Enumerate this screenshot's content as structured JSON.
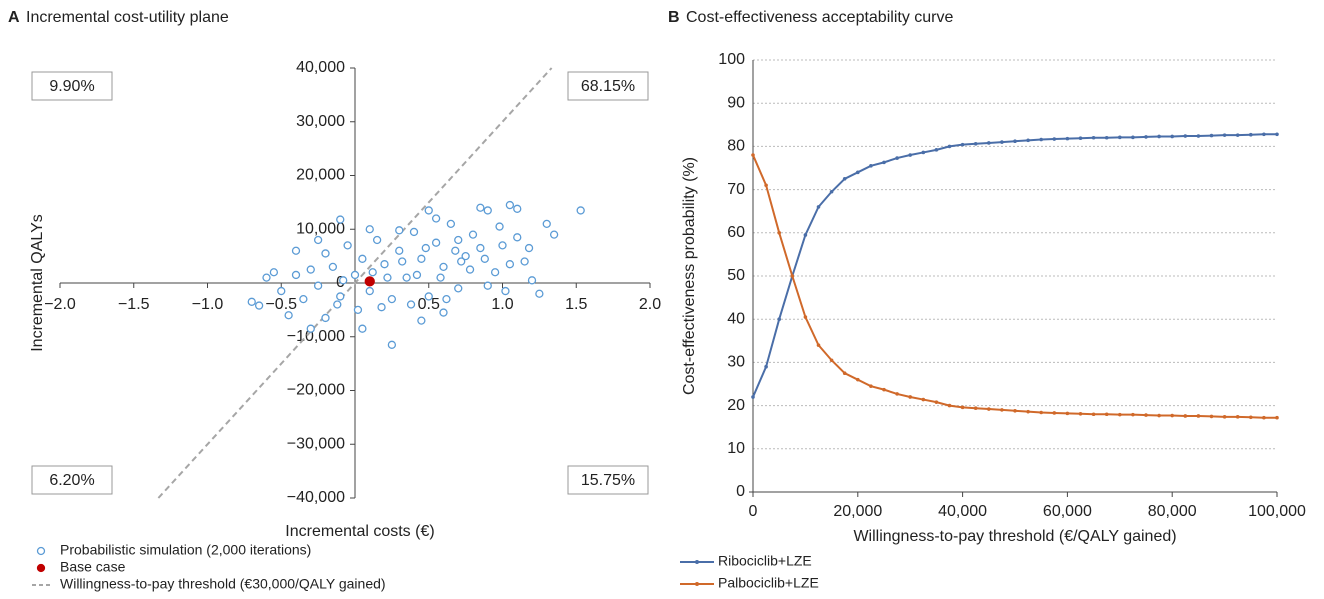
{
  "chart_data": [
    {
      "type": "scatter",
      "panel": "A",
      "title": "Incremental cost-utility plane",
      "xlabel": "Incremental costs (€)",
      "ylabel": "Incremental QALYs",
      "xlim": [
        -2,
        2
      ],
      "ylim": [
        -40000,
        40000
      ],
      "xticks": [
        {
          "value": -2,
          "label": "−2.0"
        },
        {
          "value": -1.5,
          "label": "−1.5"
        },
        {
          "value": -1,
          "label": "−1.0"
        },
        {
          "value": -0.5,
          "label": "−0.5"
        },
        {
          "value": 0.5,
          "label": "0.5"
        },
        {
          "value": 1,
          "label": "1.0"
        },
        {
          "value": 1.5,
          "label": "1.5"
        },
        {
          "value": 2,
          "label": "2.0"
        }
      ],
      "yticks": [
        {
          "value": 40000,
          "label": "40,000"
        },
        {
          "value": 30000,
          "label": "30,000"
        },
        {
          "value": 20000,
          "label": "20,000"
        },
        {
          "value": 10000,
          "label": "10,000"
        },
        0,
        {
          "value": -10000,
          "label": "−10,000"
        },
        {
          "value": -20000,
          "label": "−20,000"
        },
        {
          "value": -30000,
          "label": "−30,000"
        },
        {
          "value": -40000,
          "label": "−40,000"
        }
      ],
      "series": [
        {
          "name": "Probabilistic simulation (2,000 iterations)",
          "color": "#5b9bd5",
          "marker": "open",
          "x": [
            1.53,
            1.3,
            1.35,
            1.05,
            1.1,
            0.85,
            0.9,
            0.5,
            -0.1,
            0.25,
            -0.7,
            -0.65,
            -0.6,
            -0.45,
            -0.3,
            -0.2,
            0.05,
            0.45,
            0.6,
            1.2,
            1.25,
            1.15,
            1.0,
            0.95,
            0.8,
            0.75,
            0.7,
            0.65,
            0.6,
            0.55,
            0.5,
            0.45,
            0.4,
            0.35,
            0.3,
            0.25,
            0.2,
            0.15,
            0.1,
            0.05,
            0.0,
            -0.05,
            -0.1,
            -0.15,
            -0.2,
            -0.25,
            -0.3,
            -0.35,
            -0.4,
            -0.5,
            -0.55,
            -0.4,
            -0.25,
            0.1,
            0.3,
            0.55,
            0.7,
            0.85,
            0.9,
            1.05,
            1.1,
            0.98,
            0.78,
            0.62,
            0.42,
            0.18,
            0.02,
            -0.12,
            0.38,
            0.72,
            0.48,
            0.22,
            0.88,
            1.18,
            1.02,
            0.32,
            0.12,
            -0.08,
            0.58,
            0.68
          ],
          "y": [
            13500,
            11000,
            9000,
            14500,
            13800,
            14000,
            13500,
            13500,
            11800,
            -11500,
            -3500,
            -4200,
            1000,
            -6000,
            -8500,
            -6500,
            -8500,
            -7000,
            -5500,
            500,
            -2000,
            4000,
            7000,
            2000,
            9000,
            5000,
            -1000,
            11000,
            3000,
            7500,
            -2500,
            4500,
            9500,
            1000,
            6000,
            -3000,
            3500,
            8000,
            -1500,
            4500,
            1500,
            7000,
            -2500,
            3000,
            5500,
            -500,
            2500,
            -3000,
            1500,
            -1500,
            2000,
            6000,
            8000,
            10000,
            9800,
            12000,
            8000,
            6500,
            -500,
            3500,
            8500,
            10500,
            2500,
            -3000,
            1500,
            -4500,
            -5000,
            -4000,
            -4000,
            4000,
            6500,
            1000,
            4500,
            6500,
            -1500,
            4000,
            2000,
            500,
            1000,
            6000
          ]
        },
        {
          "name": "Base case",
          "color": "#c00000",
          "marker": "filled",
          "x": [
            0.1
          ],
          "y": [
            300
          ]
        },
        {
          "name": "Willingness-to-pay threshold (€30,000/QALY gained)",
          "color": "#a6a6a6",
          "marker": "dashed-line",
          "x": [
            -1.333,
            1.333
          ],
          "y": [
            -40000,
            40000
          ]
        }
      ],
      "annotations": [
        {
          "text": "9.90%",
          "quadrant": "top-left"
        },
        {
          "text": "68.15%",
          "quadrant": "top-right"
        },
        {
          "text": "6.20%",
          "quadrant": "bottom-left"
        },
        {
          "text": "15.75%",
          "quadrant": "bottom-right"
        }
      ]
    },
    {
      "type": "line",
      "panel": "B",
      "title": "Cost-effectiveness acceptability curve",
      "xlabel": "Willingness-to-pay threshold (€/QALY gained)",
      "ylabel": "Cost-effectiveness probability (%)",
      "xlim": [
        0,
        100000
      ],
      "ylim": [
        0,
        100
      ],
      "grid": true,
      "xticks": [
        0,
        {
          "value": 20000,
          "label": "20,000"
        },
        {
          "value": 40000,
          "label": "40,000"
        },
        {
          "value": 60000,
          "label": "60,000"
        },
        {
          "value": 80000,
          "label": "80,000"
        },
        {
          "value": 100000,
          "label": "100,000"
        }
      ],
      "yticks": [
        0,
        10,
        20,
        30,
        40,
        50,
        60,
        70,
        80,
        90,
        100
      ],
      "x": [
        0,
        2500,
        5000,
        7500,
        10000,
        12500,
        15000,
        17500,
        20000,
        22500,
        25000,
        27500,
        30000,
        32500,
        35000,
        37500,
        40000,
        42500,
        45000,
        47500,
        50000,
        52500,
        55000,
        57500,
        60000,
        62500,
        65000,
        67500,
        70000,
        72500,
        75000,
        77500,
        80000,
        82500,
        85000,
        87500,
        90000,
        92500,
        95000,
        97500,
        100000
      ],
      "series": [
        {
          "name": "Ribociclib+LZE",
          "color": "#4a6ea8",
          "values": [
            22,
            29,
            40,
            50,
            59.5,
            66,
            69.5,
            72.5,
            74,
            75.5,
            76.3,
            77.3,
            78,
            78.6,
            79.2,
            80,
            80.4,
            80.6,
            80.8,
            81,
            81.2,
            81.4,
            81.6,
            81.7,
            81.8,
            81.9,
            82,
            82,
            82.1,
            82.1,
            82.2,
            82.3,
            82.3,
            82.4,
            82.4,
            82.5,
            82.6,
            82.6,
            82.7,
            82.8,
            82.8
          ]
        },
        {
          "name": "Palbociclib+LZE",
          "color": "#d0692a",
          "values": [
            78,
            71,
            60,
            50,
            40.5,
            34,
            30.5,
            27.5,
            26,
            24.5,
            23.7,
            22.7,
            22,
            21.4,
            20.8,
            20,
            19.6,
            19.4,
            19.2,
            19,
            18.8,
            18.6,
            18.4,
            18.3,
            18.2,
            18.1,
            18,
            18,
            17.9,
            17.9,
            17.8,
            17.7,
            17.7,
            17.6,
            17.6,
            17.5,
            17.4,
            17.4,
            17.3,
            17.2,
            17.2
          ]
        }
      ]
    }
  ]
}
